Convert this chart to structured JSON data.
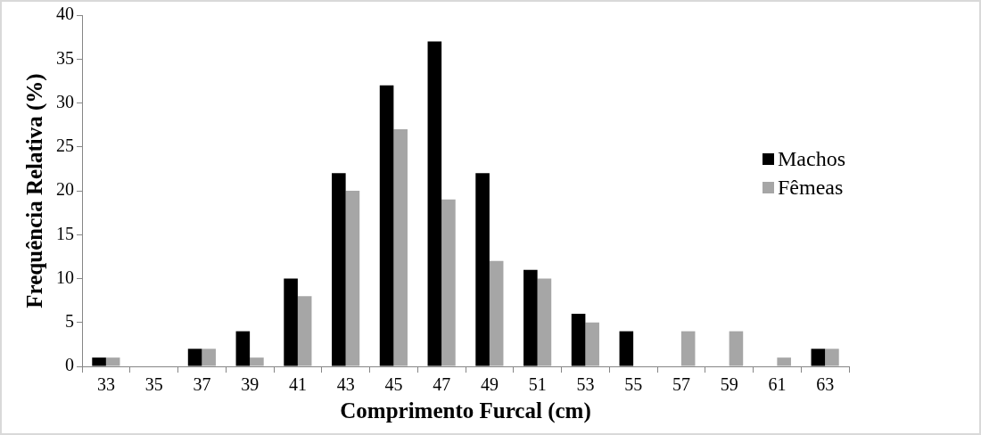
{
  "chart_data": {
    "type": "bar",
    "xlabel": "Comprimento Furcal (cm)",
    "ylabel": "Frequência Relativa (%)",
    "categories": [
      "33",
      "35",
      "37",
      "39",
      "41",
      "43",
      "45",
      "47",
      "49",
      "51",
      "53",
      "55",
      "57",
      "59",
      "61",
      "63"
    ],
    "series": [
      {
        "name": "Machos",
        "color": "#000000",
        "values": [
          1,
          0,
          2,
          4,
          10,
          22,
          32,
          37,
          22,
          11,
          6,
          4,
          0,
          0,
          0,
          2
        ]
      },
      {
        "name": "Fêmeas",
        "color": "#a6a6a6",
        "values": [
          1,
          0,
          2,
          1,
          8,
          20,
          27,
          19,
          12,
          10,
          5,
          0,
          4,
          4,
          1,
          2
        ]
      }
    ],
    "ylim": [
      0,
      40
    ],
    "yticks": [
      0,
      5,
      10,
      15,
      20,
      25,
      30,
      35,
      40
    ],
    "grid": false,
    "legend": "right"
  }
}
